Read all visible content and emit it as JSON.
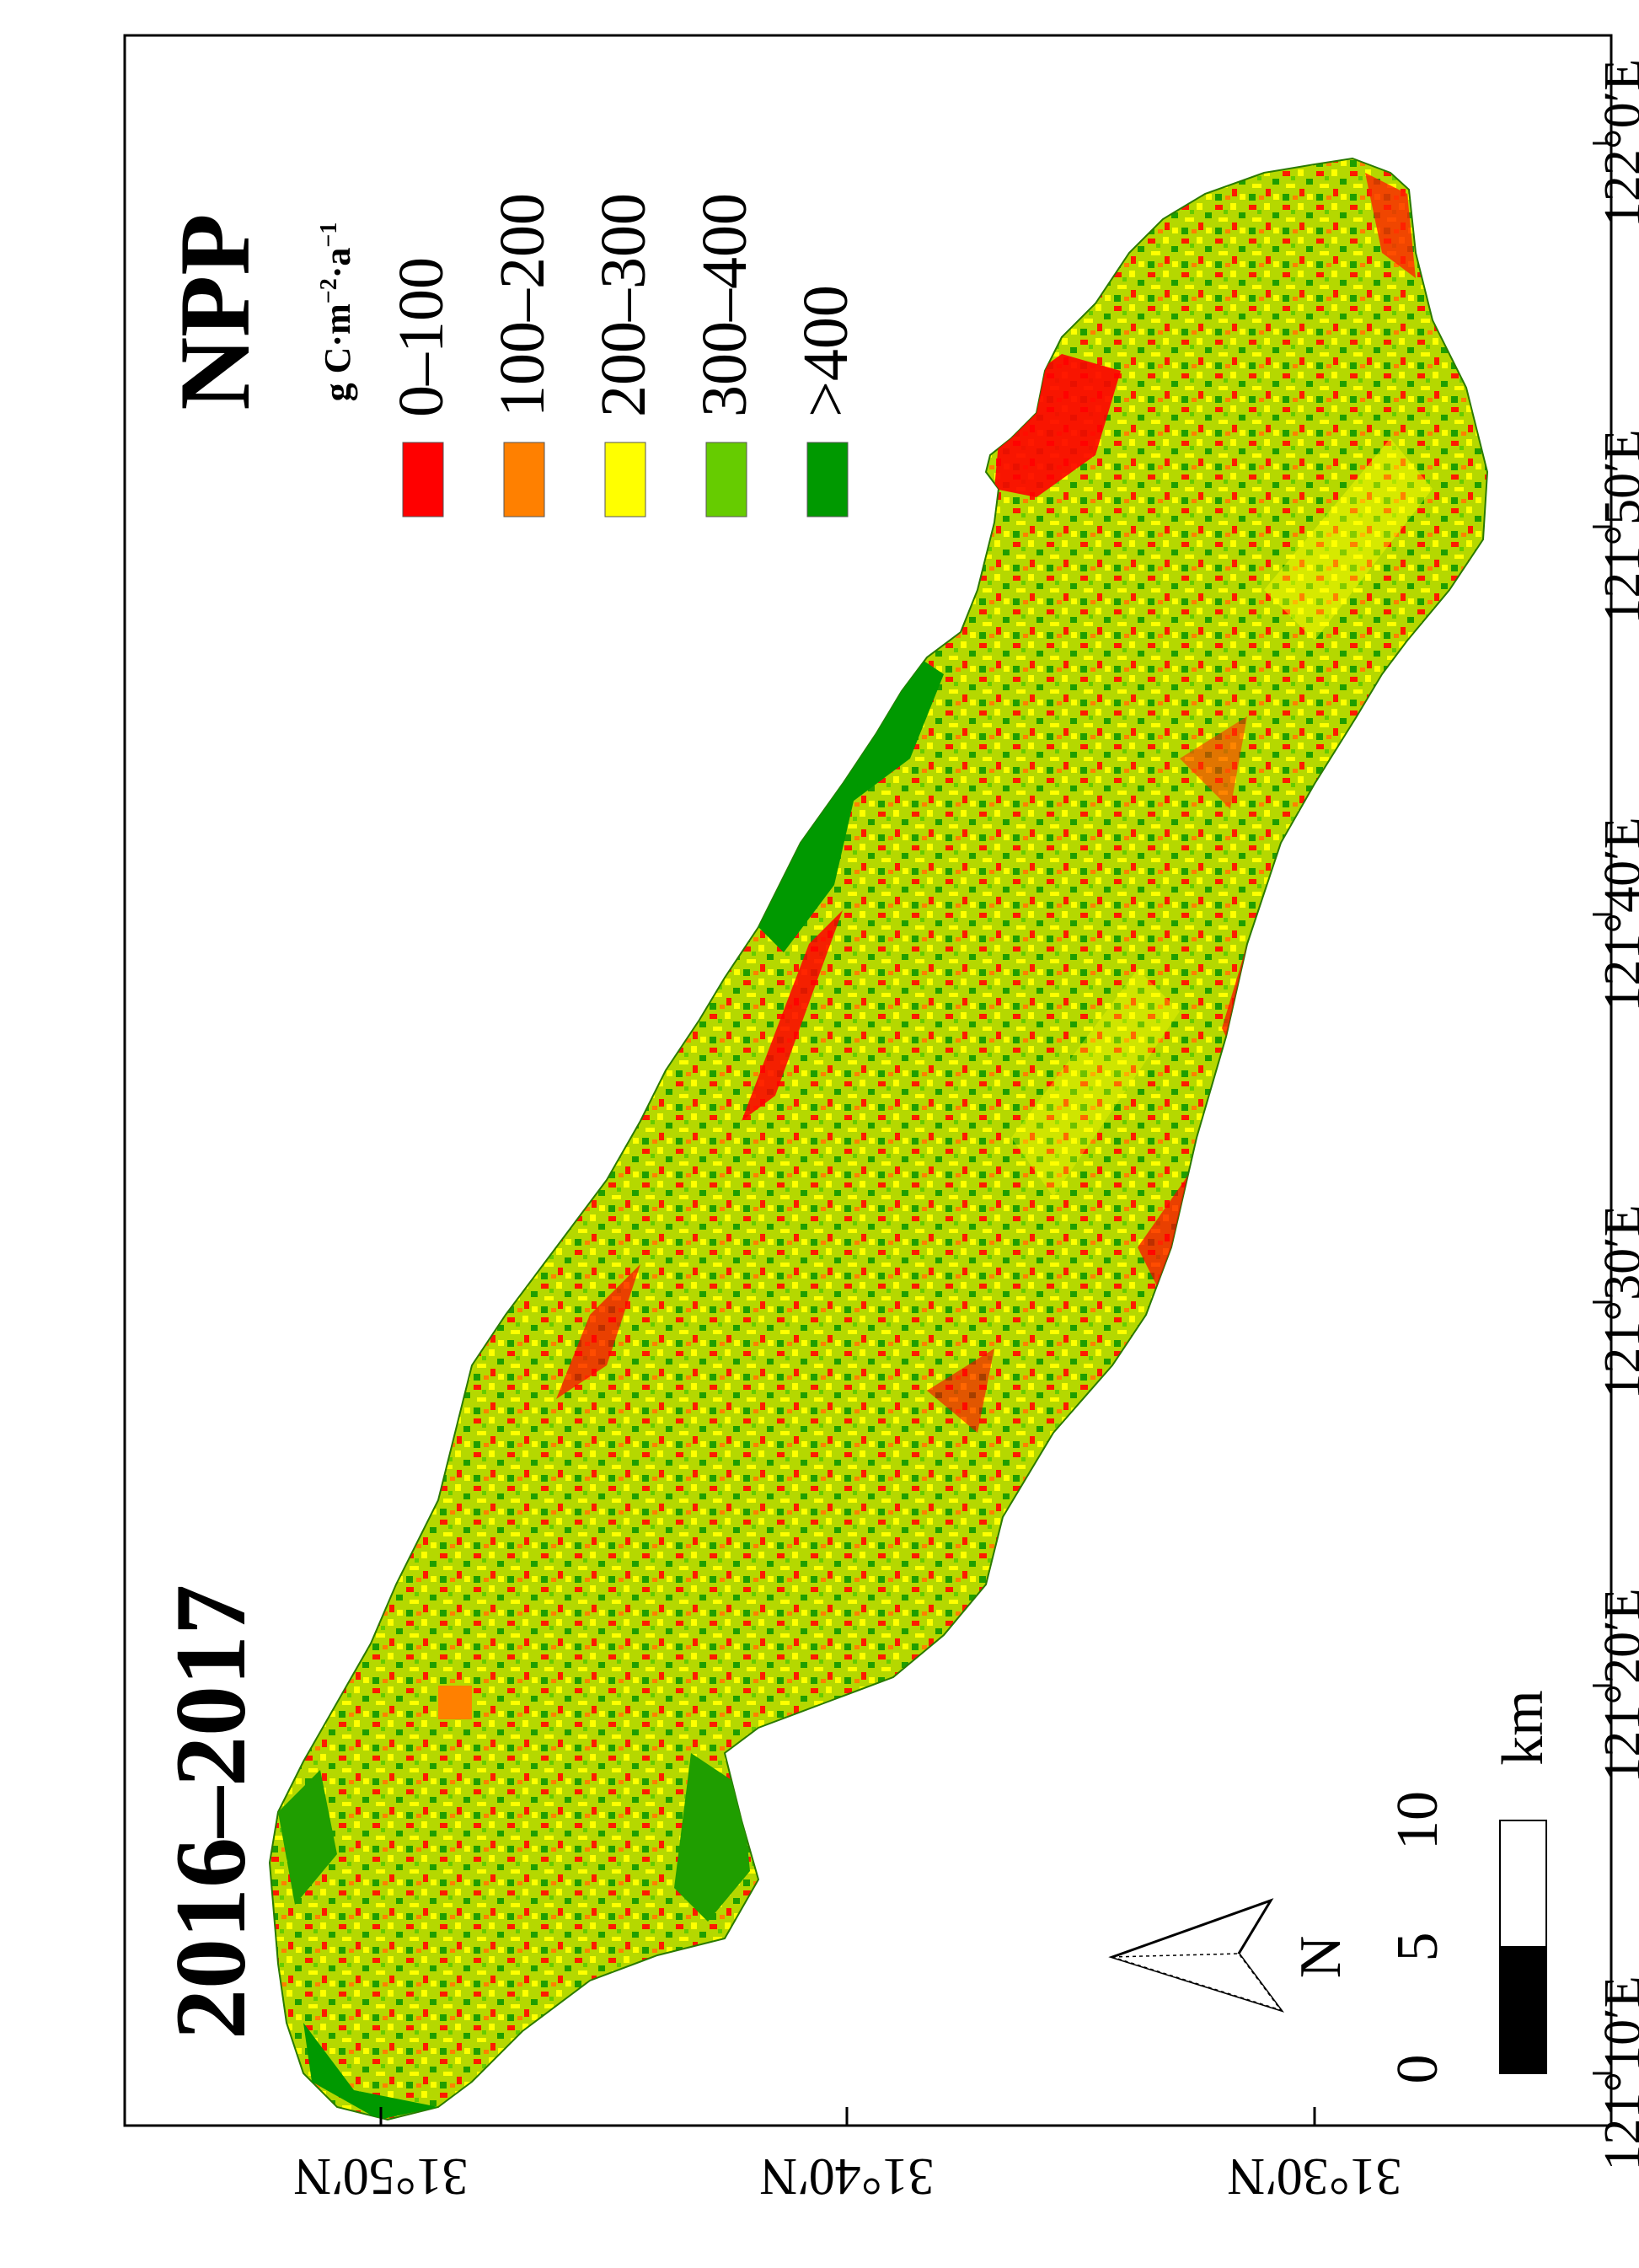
{
  "map": {
    "period_label": "2016–2017",
    "legend": {
      "title": "NPP",
      "unit_prefix": "g C·m",
      "unit_exp1": "−2",
      "unit_mid": "·a",
      "unit_exp2": "−1",
      "classes": [
        {
          "label": "0–100",
          "color": "#ff0000"
        },
        {
          "label": "100–200",
          "color": "#ff8000"
        },
        {
          "label": "200–300",
          "color": "#ffff00"
        },
        {
          "label": "300–400",
          "color": "#66cc00"
        },
        {
          "label": ">400",
          "color": "#009900"
        }
      ]
    },
    "longitude_ticks": [
      "121°10′E",
      "121°20′E",
      "121°30′E",
      "121°40′E",
      "121°50′E",
      "122°0′E"
    ],
    "latitude_ticks": [
      "31°50′N",
      "31°40′N",
      "31°30′N"
    ],
    "scale_bar": {
      "labels": [
        "0",
        "5",
        "10"
      ],
      "unit": "km"
    },
    "north_label": "N"
  }
}
